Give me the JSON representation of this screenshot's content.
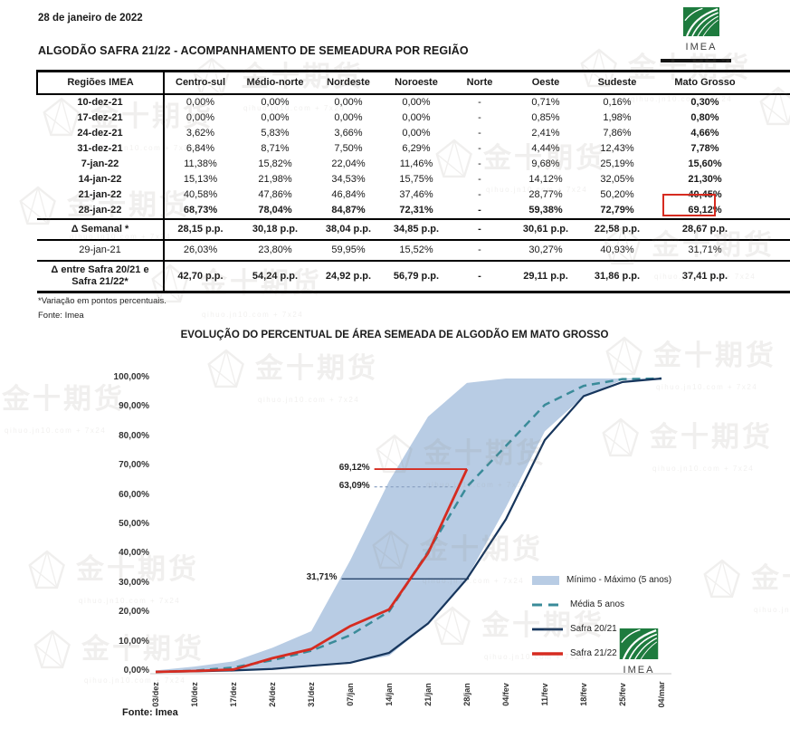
{
  "page": {
    "date": "28 de janeiro de 2022",
    "title": "ALGODÃO SAFRA 21/22 - ACOMPANHAMENTO DE SEMEADURA POR REGIÃO",
    "footnote1": "*Variação em pontos percentuais.",
    "footnote2": "Fonte: Imea"
  },
  "logo": {
    "text": "IMEA",
    "green": "#1e7b3e"
  },
  "watermark": {
    "text": "金十期货",
    "subtext": "qihuo.jn10.com + 7x24",
    "positions": [
      [
        640,
        52
      ],
      [
        46,
        106
      ],
      [
        480,
        152
      ],
      [
        20,
        204
      ],
      [
        666,
        248
      ],
      [
        166,
        290
      ],
      [
        838,
        94
      ],
      [
        212,
        62
      ],
      [
        228,
        384
      ],
      [
        668,
        370
      ],
      [
        -52,
        418
      ],
      [
        414,
        478
      ],
      [
        664,
        460
      ],
      [
        30,
        606
      ],
      [
        410,
        584
      ],
      [
        36,
        694
      ],
      [
        478,
        668
      ],
      [
        776,
        616
      ]
    ]
  },
  "table": {
    "columns": [
      "Regiões IMEA",
      "Centro-sul",
      "Médio-norte",
      "Nordeste",
      "Noroeste",
      "Norte",
      "Oeste",
      "Sudeste",
      "Mato Grosso"
    ],
    "rows": [
      {
        "label": "10-dez-21",
        "bold": "last",
        "values": [
          "0,00%",
          "0,00%",
          "0,00%",
          "0,00%",
          "-",
          "0,71%",
          "0,16%",
          "0,30%"
        ]
      },
      {
        "label": "17-dez-21",
        "bold": "last",
        "values": [
          "0,00%",
          "0,00%",
          "0,00%",
          "0,00%",
          "-",
          "0,85%",
          "1,98%",
          "0,80%"
        ]
      },
      {
        "label": "24-dez-21",
        "bold": "last",
        "values": [
          "3,62%",
          "5,83%",
          "3,66%",
          "0,00%",
          "-",
          "2,41%",
          "7,86%",
          "4,66%"
        ]
      },
      {
        "label": "31-dez-21",
        "bold": "last",
        "values": [
          "6,84%",
          "8,71%",
          "7,50%",
          "6,29%",
          "-",
          "4,44%",
          "12,43%",
          "7,78%"
        ]
      },
      {
        "label": "7-jan-22",
        "bold": "last",
        "values": [
          "11,38%",
          "15,82%",
          "22,04%",
          "11,46%",
          "-",
          "9,68%",
          "25,19%",
          "15,60%"
        ]
      },
      {
        "label": "14-jan-22",
        "bold": "last",
        "values": [
          "15,13%",
          "21,98%",
          "34,53%",
          "15,75%",
          "-",
          "14,12%",
          "32,05%",
          "21,30%"
        ]
      },
      {
        "label": "21-jan-22",
        "bold": "last",
        "values": [
          "40,58%",
          "47,86%",
          "46,84%",
          "37,46%",
          "-",
          "28,77%",
          "50,20%",
          "40,45%"
        ]
      },
      {
        "label": "28-jan-22",
        "bold": "all",
        "values": [
          "68,73%",
          "78,04%",
          "84,87%",
          "72,31%",
          "-",
          "59,38%",
          "72,79%",
          "69,12%"
        ]
      },
      {
        "label": "Δ Semanal *",
        "bold": "all",
        "sep": true,
        "values": [
          "28,15 p.p.",
          "30,18 p.p.",
          "38,04 p.p.",
          "34,85 p.p.",
          "-",
          "30,61 p.p.",
          "22,58 p.p.",
          "28,67 p.p."
        ]
      },
      {
        "label": "29-jan-21",
        "bold": "none",
        "labelBold": false,
        "sep": true,
        "values": [
          "26,03%",
          "23,80%",
          "59,95%",
          "15,52%",
          "-",
          "30,27%",
          "40,93%",
          "31,71%"
        ]
      },
      {
        "label": "Δ entre Safra 20/21 e\nSafra 21/22*",
        "bold": "all",
        "sep": true,
        "values": [
          "42,70 p.p.",
          "54,24 p.p.",
          "24,92 p.p.",
          "56,79 p.p.",
          "-",
          "29,11 p.p.",
          "31,86 p.p.",
          "37,41 p.p."
        ]
      }
    ],
    "highlight": {
      "row": 7,
      "col": 7
    }
  },
  "chart_data": {
    "type": "line",
    "title": "EVOLUÇÃO DO PERCENTUAL DE ÁREA SEMEADA DE ALGODÃO EM MATO GROSSO",
    "source": "Fonte: Imea",
    "categories": [
      "03/dez",
      "10/dez",
      "17/dez",
      "24/dez",
      "31/dez",
      "07/jan",
      "14/jan",
      "21/jan",
      "28/jan",
      "04/fev",
      "11/fev",
      "18/fev",
      "25/fev",
      "04/mar"
    ],
    "y_ticks": [
      "100,00%",
      "90,00%",
      "80,00%",
      "70,00%",
      "60,00%",
      "50,00%",
      "40,00%",
      "30,00%",
      "20,00%",
      "10,00%",
      "0,00%"
    ],
    "ylim": [
      0,
      100
    ],
    "grid": false,
    "legend_position": "right-bottom",
    "series": [
      {
        "name": "Mínimo - Máximo (5 anos)",
        "type": "band",
        "color": "#b8cce4",
        "min": [
          0,
          0,
          0.3,
          0.8,
          1.8,
          3,
          5.5,
          16.5,
          32,
          56,
          82,
          94,
          99.5,
          100
        ],
        "max": [
          0.5,
          1.8,
          3.6,
          8.2,
          13.9,
          38,
          65,
          87,
          98.5,
          100,
          100,
          100,
          100,
          100
        ]
      },
      {
        "name": "Média 5 anos",
        "type": "line",
        "style": "dashed",
        "color": "#3a8b99",
        "width": 2.5,
        "dash": "9 6",
        "values": [
          0,
          0.4,
          1.5,
          4,
          7.2,
          12.5,
          20.6,
          41,
          63.09,
          77,
          91,
          97.5,
          99.8,
          100
        ]
      },
      {
        "name": "Safra 20/21",
        "type": "line",
        "style": "solid",
        "color": "#17365d",
        "width": 2.2,
        "values": [
          0,
          0.2,
          0.5,
          1,
          2.1,
          3.1,
          6.5,
          16.5,
          31.71,
          52,
          79,
          94,
          98.8,
          100
        ]
      },
      {
        "name": "Safra 21/22",
        "type": "line",
        "style": "solid",
        "color": "#d62b20",
        "width": 2.8,
        "values": [
          0,
          0.3,
          0.8,
          4.66,
          7.78,
          15.6,
          21.3,
          40.45,
          69.12
        ]
      }
    ],
    "annotations": [
      {
        "text": "69,12%",
        "value": 69.12,
        "from": 5.62,
        "to": 8,
        "color": "#d62b20",
        "width": 1.8
      },
      {
        "text": "63,09%",
        "value": 63.09,
        "from": 5.62,
        "to": 7.72,
        "color": "#8ca3c4",
        "width": 1.2,
        "dash": "3 3"
      },
      {
        "text": "31,71%",
        "value": 31.71,
        "from": 4.78,
        "to": 8.05,
        "color": "#17365d",
        "width": 1.2
      }
    ]
  }
}
